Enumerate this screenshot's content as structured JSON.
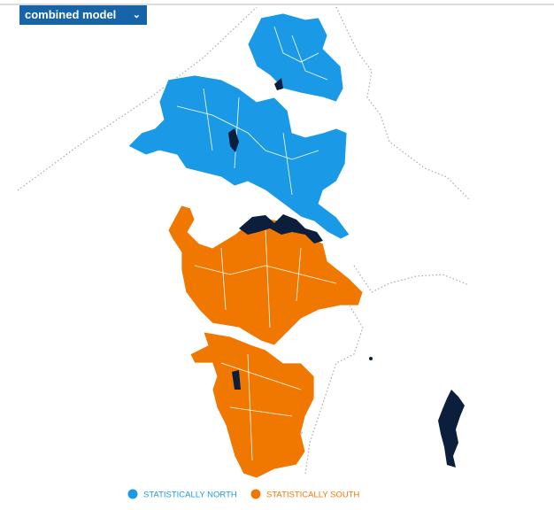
{
  "dropdown": {
    "label": "combined model"
  },
  "legend": {
    "items": [
      {
        "label": "STATISTICALLY NORTH",
        "color": "#1a9ae6"
      },
      {
        "label": "STATISTICALLY SOUTH",
        "color": "#f07800"
      }
    ]
  }
}
